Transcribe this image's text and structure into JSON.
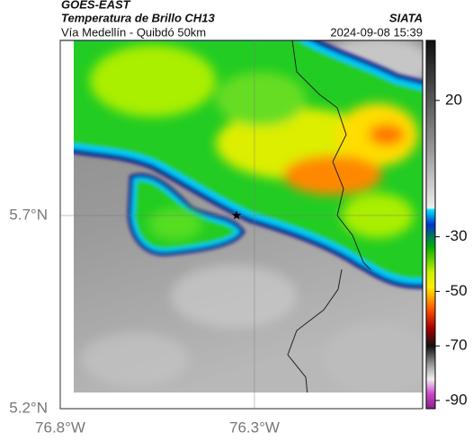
{
  "header": {
    "source": "GOES-EAST",
    "title": "Temperatura de Brillo CH13",
    "subtitle": "Vía Medellín - Quibdó 50km",
    "brand": "SIATA",
    "timestamp": "2024-09-08 15:39"
  },
  "map": {
    "lonlim": [
      -76.8,
      -75.867
    ],
    "latlim": [
      5.2,
      6.153
    ],
    "lon_ticks": [
      {
        "value": -76.8,
        "label": "76.8°W"
      },
      {
        "value": -76.3,
        "label": "76.3°W"
      }
    ],
    "lat_ticks": [
      {
        "value": 5.7,
        "label": "5.7°N"
      },
      {
        "value": 5.2,
        "label": "5.2°N"
      }
    ],
    "marker": {
      "lon": -76.346,
      "lat": 5.7
    }
  },
  "colorbar": {
    "lim": [
      -93,
      42
    ],
    "ticks": [
      20,
      -30,
      -50,
      -70,
      -90
    ]
  }
}
